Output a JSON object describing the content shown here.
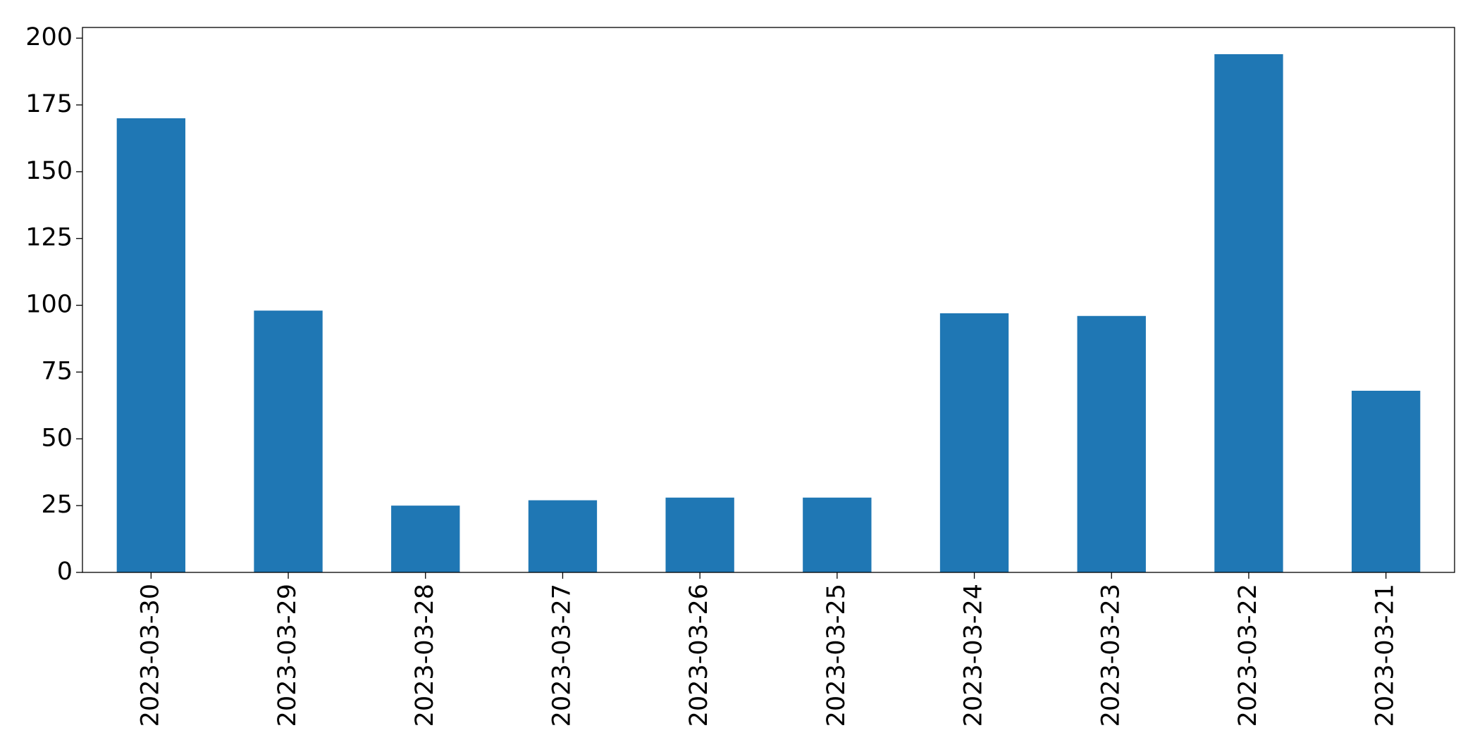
{
  "chart_data": {
    "type": "bar",
    "categories": [
      "2023-03-30",
      "2023-03-29",
      "2023-03-28",
      "2023-03-27",
      "2023-03-26",
      "2023-03-25",
      "2023-03-24",
      "2023-03-23",
      "2023-03-22",
      "2023-03-21"
    ],
    "values": [
      170,
      98,
      25,
      27,
      28,
      28,
      97,
      96,
      194,
      68
    ],
    "color": "#1f77b4",
    "ylim": [
      0,
      204
    ],
    "yticks": [
      0,
      25,
      50,
      75,
      100,
      125,
      150,
      175,
      200
    ],
    "grid": false
  }
}
